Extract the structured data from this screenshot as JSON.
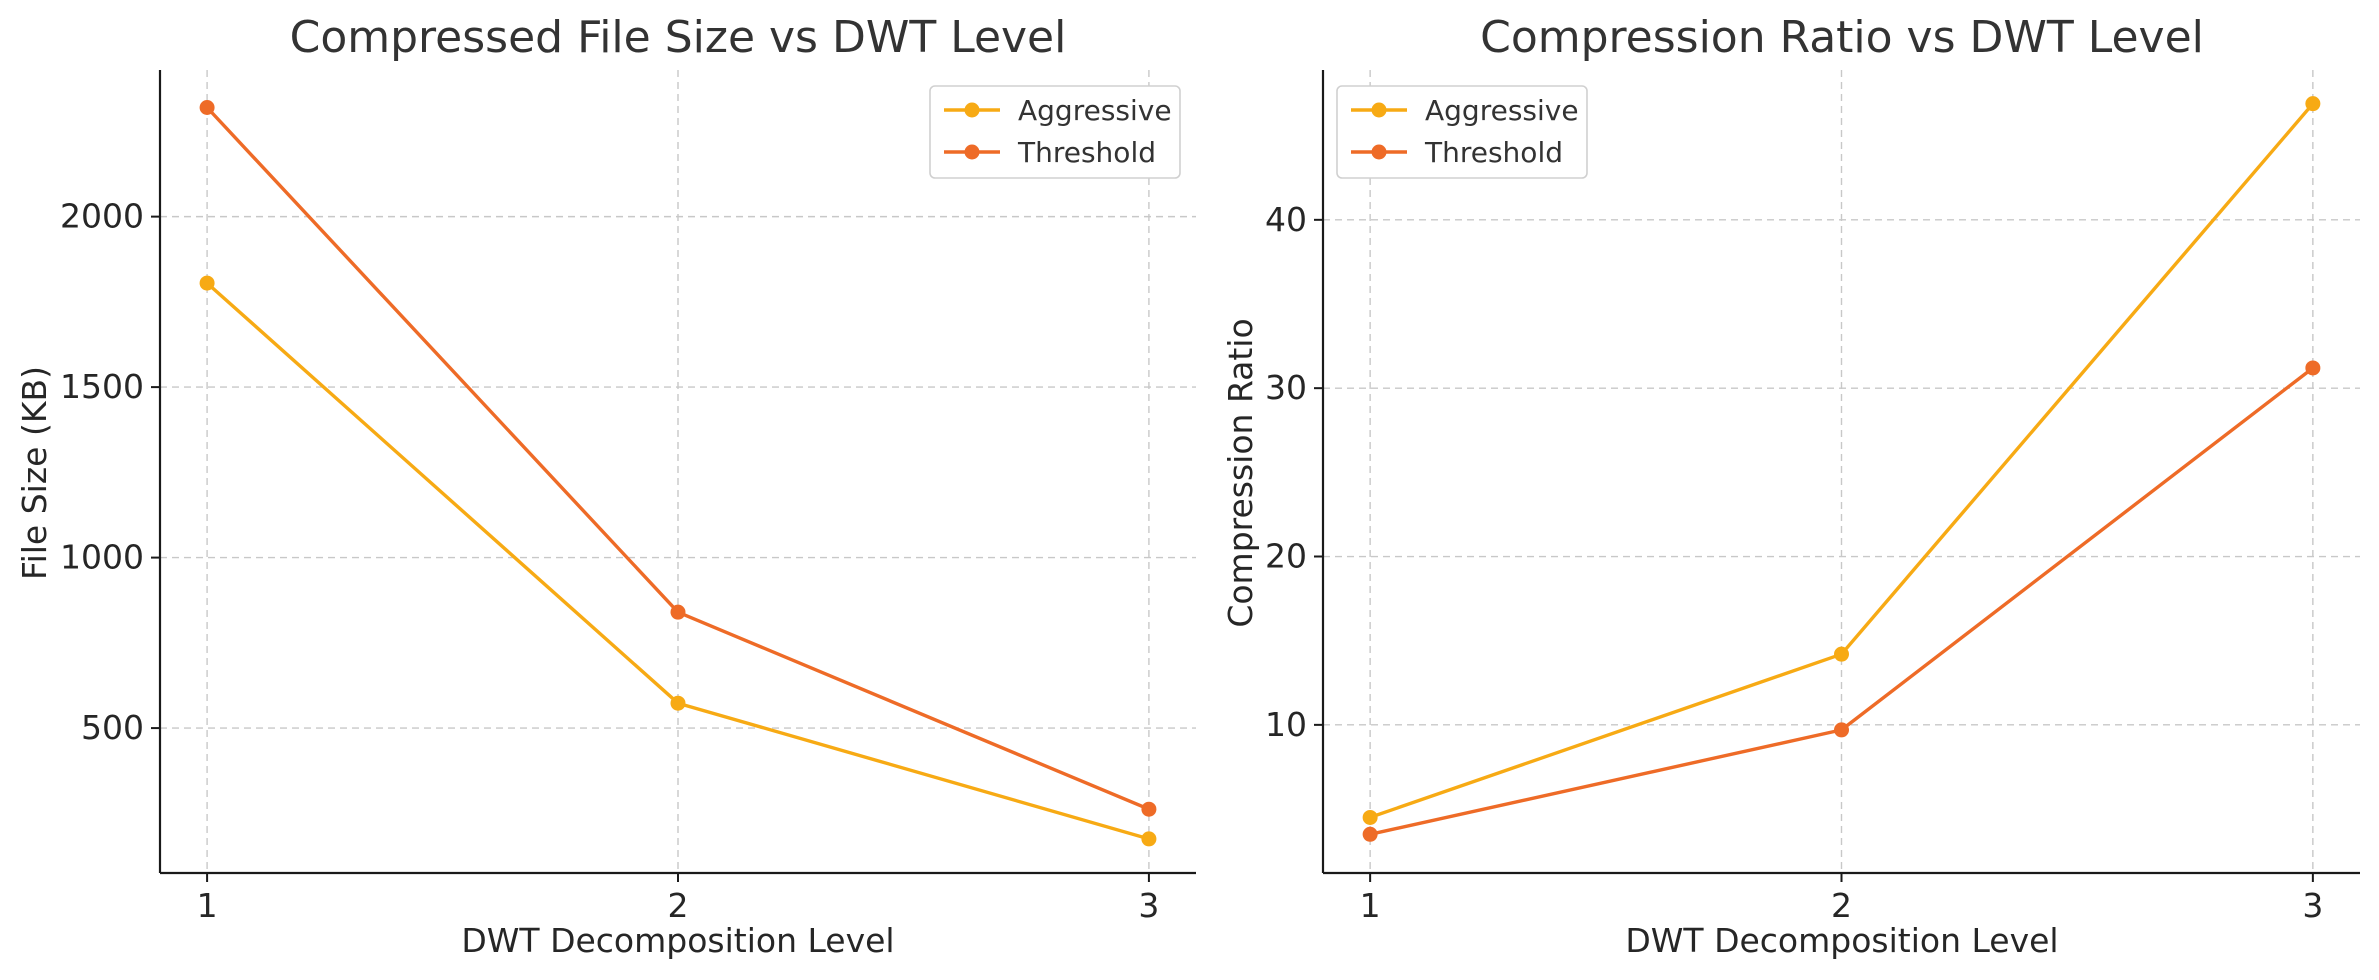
{
  "chart_data": [
    {
      "type": "line",
      "title": "Compressed File Size vs DWT Level",
      "xlabel": "DWT Decomposition Level",
      "ylabel": "File Size (KB)",
      "x": [
        1,
        2,
        3
      ],
      "xticks": [
        1,
        2,
        3
      ],
      "yticks": [
        500,
        1000,
        1500,
        2000
      ],
      "xlim": [
        0.9,
        3.1
      ],
      "ylim": [
        75,
        2430
      ],
      "grid": true,
      "legend_position": "top-right",
      "series": [
        {
          "name": "Aggressive",
          "color": "#f7aa14",
          "values": [
            1805,
            573,
            175
          ]
        },
        {
          "name": "Threshold",
          "color": "#ee6b27",
          "values": [
            2320,
            840,
            262
          ]
        }
      ]
    },
    {
      "type": "line",
      "title": "Compression Ratio vs DWT Level",
      "xlabel": "DWT Decomposition Level",
      "ylabel": "Compression Ratio",
      "x": [
        1,
        2,
        3
      ],
      "xticks": [
        1,
        2,
        3
      ],
      "yticks": [
        10,
        20,
        30,
        40
      ],
      "xlim": [
        0.9,
        3.1
      ],
      "ylim": [
        1.2,
        48.9
      ],
      "grid": true,
      "legend_position": "top-left",
      "series": [
        {
          "name": "Aggressive",
          "color": "#f7aa14",
          "values": [
            4.5,
            14.2,
            46.9
          ]
        },
        {
          "name": "Threshold",
          "color": "#ee6b27",
          "values": [
            3.5,
            9.7,
            31.2
          ]
        }
      ]
    }
  ]
}
